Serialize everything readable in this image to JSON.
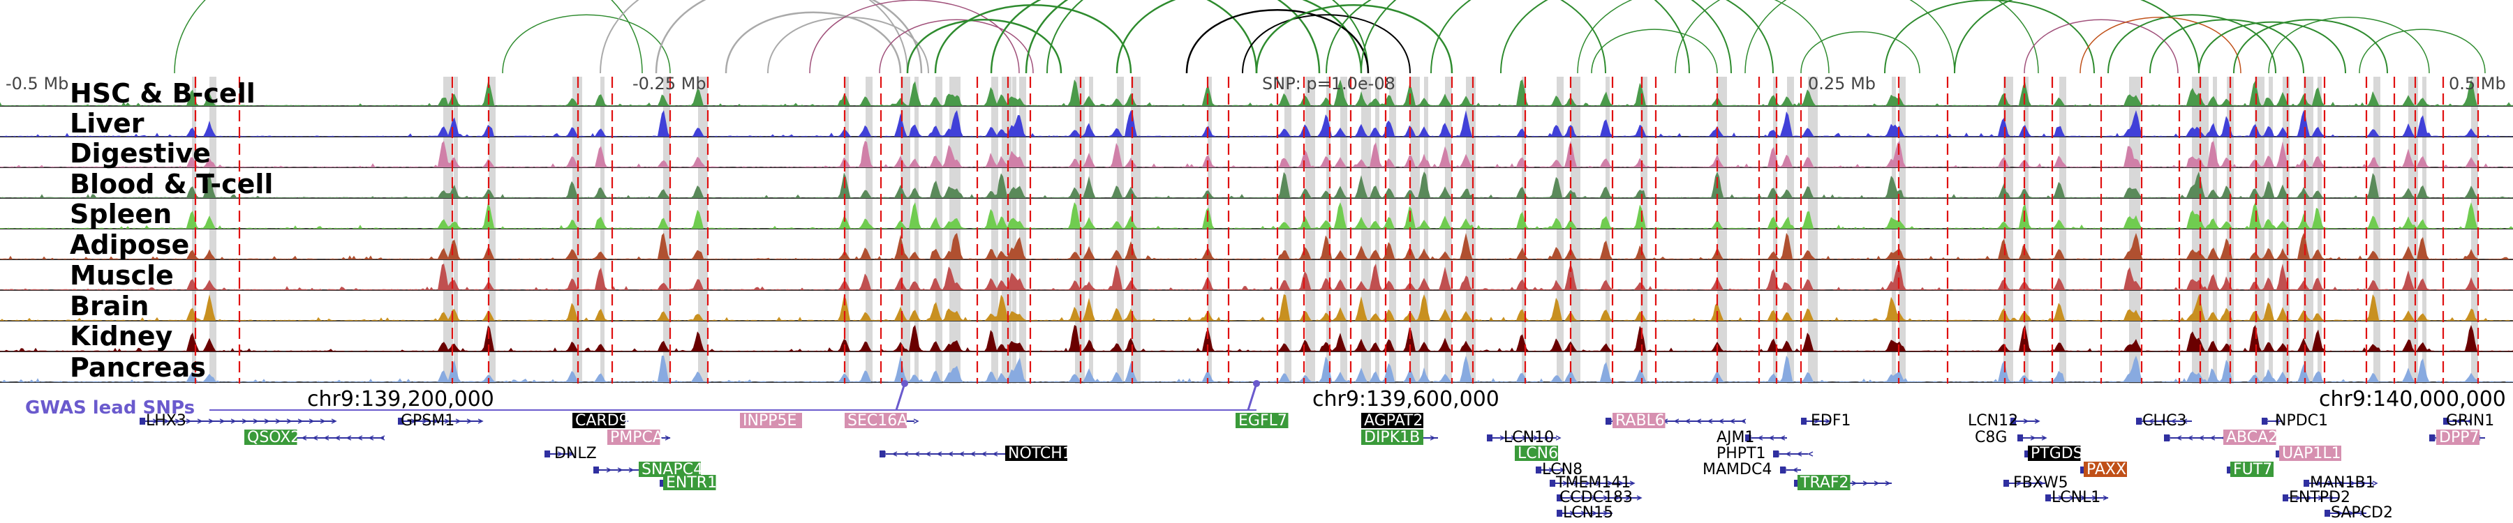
{
  "axis": {
    "ticks": [
      "-0.5 Mb",
      "-0.25 Mb",
      "SNP: p=1.0e-08",
      "0.25 Mb",
      "0.5 Mb"
    ]
  },
  "tracks": [
    {
      "name": "HSC & B-cell",
      "color": "#4a9a4a"
    },
    {
      "name": "Liver",
      "color": "#4040d8"
    },
    {
      "name": "Digestive",
      "color": "#d080a8"
    },
    {
      "name": "Blood & T-cell",
      "color": "#5a8a5a"
    },
    {
      "name": "Spleen",
      "color": "#70cc50"
    },
    {
      "name": "Adipose",
      "color": "#b05030"
    },
    {
      "name": "Muscle",
      "color": "#c05050"
    },
    {
      "name": "Brain",
      "color": "#c89020"
    },
    {
      "name": "Kidney",
      "color": "#6a0000"
    },
    {
      "name": "Pancreas",
      "color": "#88aae0"
    }
  ],
  "coordinates": [
    "chr9:139,200,000",
    "chr9:139,600,000",
    "chr9:140,000,000"
  ],
  "gwas_label": "GWAS lead SNPs",
  "genes": [
    {
      "name": "LHX3",
      "style": "plain"
    },
    {
      "name": "QSOX2",
      "style": "green"
    },
    {
      "name": "GPSM1",
      "style": "plain"
    },
    {
      "name": "CARD9",
      "style": "black"
    },
    {
      "name": "PMPCA",
      "style": "pink"
    },
    {
      "name": "DNLZ",
      "style": "plain"
    },
    {
      "name": "SNAPC4",
      "style": "green"
    },
    {
      "name": "ENTR1",
      "style": "green"
    },
    {
      "name": "INPP5E",
      "style": "pink"
    },
    {
      "name": "SEC16A",
      "style": "pink"
    },
    {
      "name": "NOTCH1",
      "style": "black"
    },
    {
      "name": "EGFL7",
      "style": "green"
    },
    {
      "name": "AGPAT2",
      "style": "black"
    },
    {
      "name": "DIPK1B",
      "style": "green"
    },
    {
      "name": "LCN10",
      "style": "plain"
    },
    {
      "name": "LCN6",
      "style": "green"
    },
    {
      "name": "LCN8",
      "style": "plain"
    },
    {
      "name": "TMEM141",
      "style": "plain"
    },
    {
      "name": "CCDC183",
      "style": "plain"
    },
    {
      "name": "LCN15",
      "style": "plain"
    },
    {
      "name": "RABL6",
      "style": "pink"
    },
    {
      "name": "AJM1",
      "style": "plain"
    },
    {
      "name": "PHPT1",
      "style": "plain"
    },
    {
      "name": "MAMDC4",
      "style": "plain"
    },
    {
      "name": "EDF1",
      "style": "plain"
    },
    {
      "name": "TRAF2",
      "style": "green"
    },
    {
      "name": "LCN12",
      "style": "plain"
    },
    {
      "name": "C8G",
      "style": "plain"
    },
    {
      "name": "PTGDS",
      "style": "black"
    },
    {
      "name": "FBXW5",
      "style": "plain"
    },
    {
      "name": "LCNL1",
      "style": "plain"
    },
    {
      "name": "PAXX",
      "style": "orange"
    },
    {
      "name": "CLIC3",
      "style": "plain"
    },
    {
      "name": "ABCA2",
      "style": "pink"
    },
    {
      "name": "FUT7",
      "style": "green"
    },
    {
      "name": "NPDC1",
      "style": "plain"
    },
    {
      "name": "UAP1L1",
      "style": "pink"
    },
    {
      "name": "MAN1B1",
      "style": "plain"
    },
    {
      "name": "ENTPD2",
      "style": "plain"
    },
    {
      "name": "SAPCD2",
      "style": "plain"
    },
    {
      "name": "GRIN1",
      "style": "plain"
    },
    {
      "name": "DPP7",
      "style": "pink"
    }
  ],
  "colors": {
    "snp_line": "#e01010",
    "peak_highlight": "#d8d8d8",
    "gene_line": "#3030a0",
    "gene_green": "#3a9a3a",
    "gene_pink": "#d690b0",
    "gene_black": "#000000",
    "gene_orange": "#c05018",
    "arc_green": "#2e8b2e",
    "arc_gray": "#aaaaaa",
    "arc_purple": "#a0507a",
    "arc_black": "#000000",
    "gwas": "#6a5acd"
  }
}
